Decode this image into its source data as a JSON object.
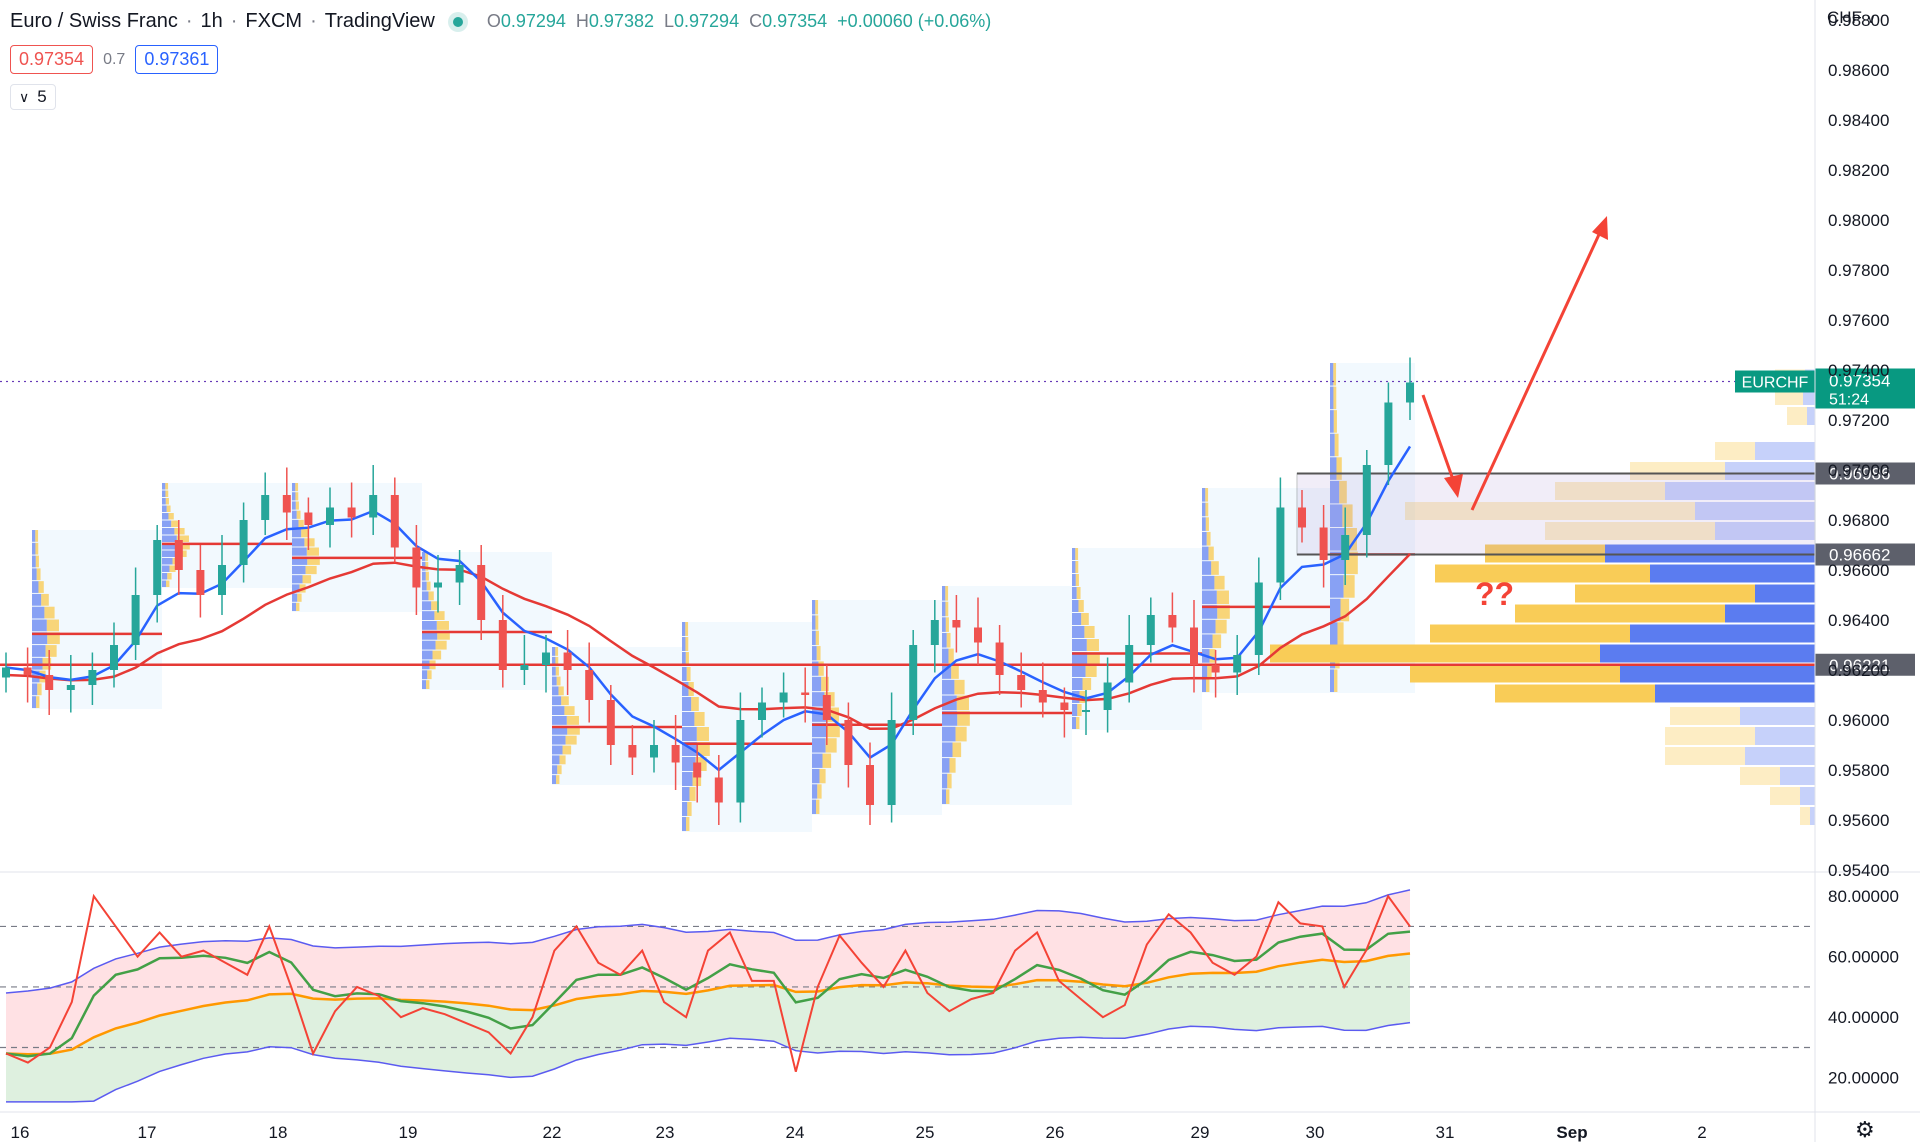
{
  "header": {
    "symbol": "Euro / Swiss Franc",
    "interval": "1h",
    "broker": "FXCM",
    "platform": "TradingView",
    "ohlc": {
      "o_label": "O",
      "o": "0.97294",
      "h_label": "H",
      "h": "0.97382",
      "l_label": "L",
      "l": "0.97294",
      "c_label": "C",
      "c": "0.97354",
      "change": "+0.00060 (+0.06%)"
    },
    "sell_price": "0.97354",
    "spread": "0.7",
    "buy_price": "0.97361",
    "indicator_count": "5"
  },
  "currency_label": "CHF",
  "colors": {
    "up": "#26a69a",
    "down": "#ef5350",
    "ema_fast": "#2962ff",
    "ema_slow": "#e53935",
    "level": "#e53935",
    "box_border": "#131722",
    "annotation": "#f44336",
    "vp_buy": "#5b7cf0",
    "vp_sell": "#f9cc57",
    "rsi": "#f44336",
    "rsi_signal": "#43a047",
    "rsi_ma": "#ff9800",
    "band": "#5b5bf0"
  },
  "icons": [
    "chevron-down-icon",
    "settings-gear-icon",
    "live-status-icon"
  ],
  "chart_data": {
    "type": "candlestick",
    "title": "Euro / Swiss Franc, 1h, FXCM",
    "y_axis": {
      "ticks": [
        "0.98800",
        "0.98600",
        "0.98400",
        "0.98200",
        "0.98000",
        "0.97800",
        "0.97600",
        "0.97400",
        "0.97200",
        "0.97000",
        "0.96800",
        "0.96600",
        "0.96400",
        "0.96200",
        "0.96000",
        "0.95800",
        "0.95600",
        "0.95400"
      ],
      "range": [
        0.953,
        0.9892
      ]
    },
    "x_axis": {
      "labels": [
        "16",
        "17",
        "18",
        "19",
        "22",
        "23",
        "24",
        "25",
        "26",
        "29",
        "30",
        "31",
        "Sep",
        "2"
      ]
    },
    "close_series": [
      0.9621,
      0.9618,
      0.9612,
      0.9614,
      0.962,
      0.963,
      0.965,
      0.9672,
      0.966,
      0.965,
      0.9662,
      0.968,
      0.969,
      0.9683,
      0.9678,
      0.9685,
      0.9681,
      0.969,
      0.9669,
      0.9653,
      0.9655,
      0.9662,
      0.964,
      0.962,
      0.9622,
      0.9627,
      0.962,
      0.9608,
      0.959,
      0.9585,
      0.959,
      0.9583,
      0.9577,
      0.9567,
      0.96,
      0.9607,
      0.9611,
      0.961,
      0.96,
      0.9582,
      0.9566,
      0.96,
      0.963,
      0.964,
      0.9637,
      0.9631,
      0.9618,
      0.9612,
      0.9607,
      0.9604,
      0.9604,
      0.9615,
      0.963,
      0.9642,
      0.9637,
      0.9622,
      0.9619,
      0.9626,
      0.9655,
      0.9685,
      0.9677,
      0.9664,
      0.9674,
      0.9702,
      0.9727,
      0.9735
    ],
    "current_price": {
      "label": "EURCHF",
      "value": "0.97354",
      "countdown": "51:24"
    },
    "levels": [
      {
        "value": "0.96986",
        "type": "box_top"
      },
      {
        "value": "0.96662",
        "type": "box_bottom"
      },
      {
        "value": "0.96221",
        "type": "support_line"
      }
    ],
    "annotation_text": "??",
    "oscillator": {
      "ticks": [
        "80.00000",
        "60.00000",
        "40.00000",
        "20.00000"
      ],
      "range": [
        10,
        86
      ],
      "guides": [
        70,
        50,
        30
      ],
      "rsi": [
        28,
        25,
        30,
        45,
        80,
        70,
        60,
        68,
        60,
        62,
        58,
        54,
        70,
        50,
        28,
        42,
        50,
        47,
        40,
        43,
        41,
        38,
        35,
        28,
        40,
        62,
        70,
        58,
        54,
        62,
        45,
        40,
        62,
        68,
        52,
        52,
        22,
        50,
        67,
        58,
        50,
        62,
        48,
        42,
        46,
        48,
        62,
        68,
        52,
        46,
        40,
        44,
        64,
        74,
        68,
        58,
        54,
        60,
        78,
        71,
        70,
        50,
        62,
        80,
        70
      ]
    }
  }
}
